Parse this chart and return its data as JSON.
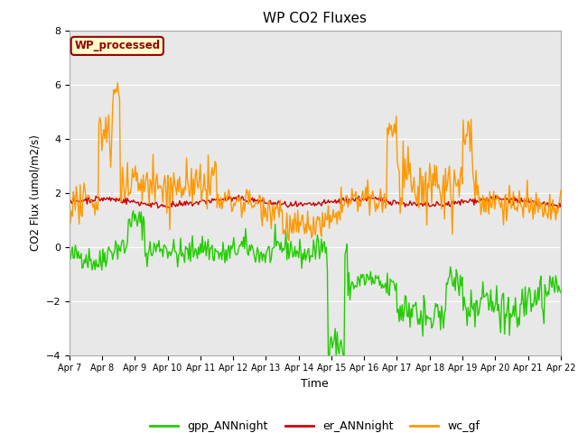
{
  "title": "WP CO2 Fluxes",
  "xlabel": "Time",
  "ylabel": "CO2 Flux (umol/m2/s)",
  "ylim": [
    -4,
    8
  ],
  "yticks": [
    -4,
    -2,
    0,
    2,
    4,
    6,
    8
  ],
  "background_color": "#e8e8e8",
  "series": [
    "gpp_ANNnight",
    "er_ANNnight",
    "wc_gf"
  ],
  "colors": [
    "#22cc00",
    "#cc0000",
    "#ff9900"
  ],
  "linewidths": [
    1.0,
    1.0,
    1.0
  ],
  "annotation_text": "WP_processed",
  "annotation_bg": "#ffffcc",
  "annotation_border": "#990000",
  "annotation_text_color": "#990000",
  "date_labels": [
    "Apr 7",
    "Apr 8",
    "Apr 9",
    "Apr 10",
    "Apr 11",
    "Apr 12",
    "Apr 13",
    "Apr 14",
    "Apr 15",
    "Apr 16",
    "Apr 17",
    "Apr 18",
    "Apr 19",
    "Apr 20",
    "Apr 21",
    "Apr 22"
  ],
  "seed": 42,
  "n_points": 500
}
